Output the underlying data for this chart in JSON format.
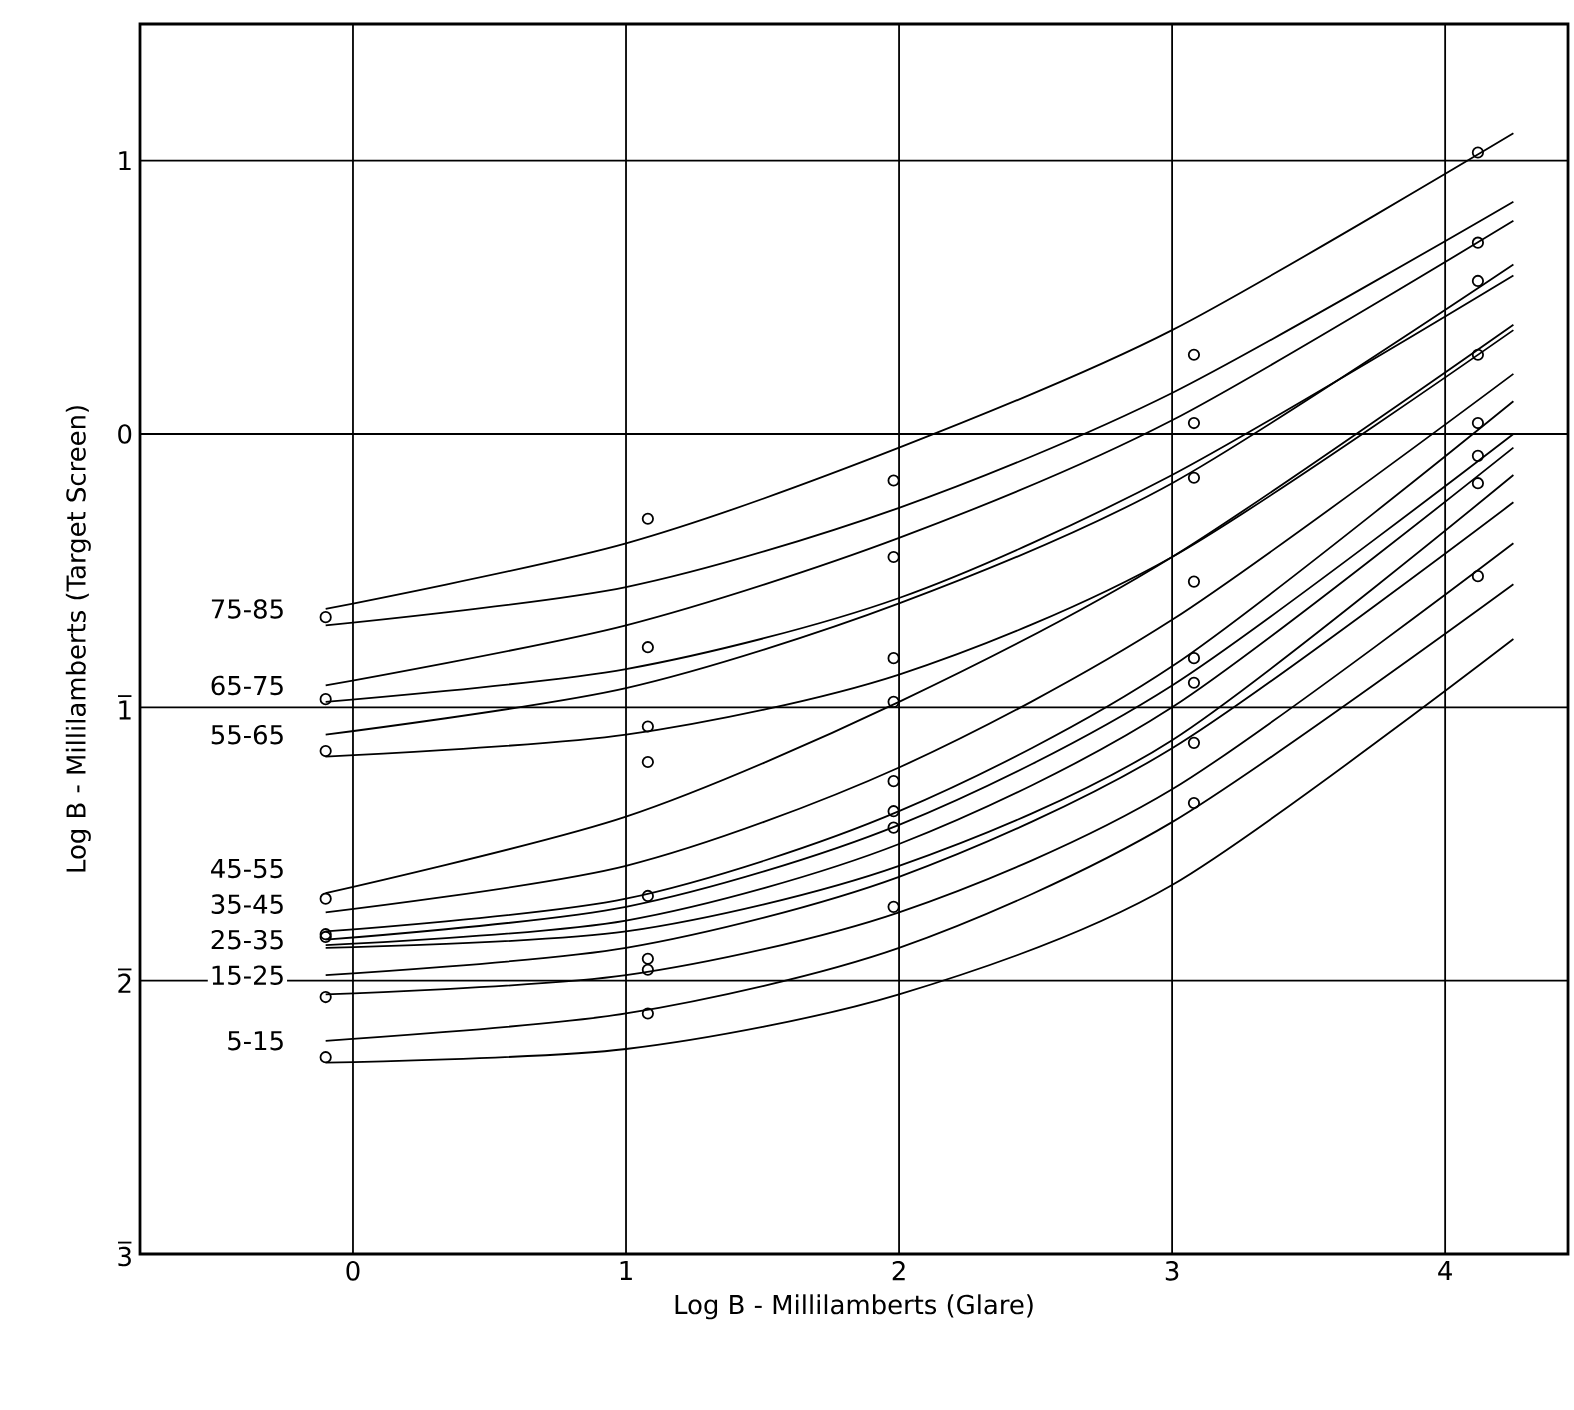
{
  "chart_data": {
    "type": "line",
    "xlabel": "Log B - Millilamberts (Glare)",
    "ylabel": "Log B - Millilamberts (Target Screen)",
    "xlim": [
      -0.78,
      4.45
    ],
    "ylim": [
      -3,
      1.5
    ],
    "xticks": [
      0,
      1,
      2,
      3,
      4
    ],
    "yticks": [
      {
        "value": -3,
        "label": "3̅"
      },
      {
        "value": -2,
        "label": "2̅"
      },
      {
        "value": -1,
        "label": "1̅"
      },
      0,
      1
    ],
    "grid": true,
    "series": [
      {
        "name": "75-85",
        "color": "#000000",
        "x": [
          -0.1,
          1,
          2,
          3,
          4.25
        ],
        "values": [
          -0.64,
          -0.4,
          -0.05,
          0.38,
          1.1
        ]
      },
      {
        "color": "#000000",
        "x": [
          -0.1,
          1,
          2,
          3,
          4.25
        ],
        "values": [
          -0.7,
          -0.56,
          -0.27,
          0.15,
          0.85
        ]
      },
      {
        "type": "scatter",
        "marker": "circle",
        "color": "#000000",
        "x": [
          -0.1,
          1.08,
          1.98,
          3.08,
          4.12
        ],
        "values": [
          -0.67,
          -0.31,
          -0.17,
          0.29,
          1.03
        ]
      },
      {
        "name": "65-75",
        "color": "#000000",
        "x": [
          -0.1,
          1,
          2,
          3,
          4.25
        ],
        "values": [
          -0.92,
          -0.7,
          -0.38,
          0.05,
          0.78
        ]
      },
      {
        "color": "#000000",
        "x": [
          -0.1,
          1,
          2,
          3,
          4.25
        ],
        "values": [
          -0.98,
          -0.86,
          -0.6,
          -0.15,
          0.58
        ]
      },
      {
        "type": "scatter",
        "marker": "circle",
        "color": "#000000",
        "x": [
          -0.1,
          1.08,
          1.98,
          3.08,
          4.12
        ],
        "values": [
          -0.97,
          -0.78,
          -0.45,
          0.04,
          0.7
        ]
      },
      {
        "name": "55-65",
        "color": "#000000",
        "x": [
          -0.1,
          1,
          2,
          3,
          4.25
        ],
        "values": [
          -1.1,
          -0.93,
          -0.62,
          -0.18,
          0.62
        ]
      },
      {
        "color": "#000000",
        "x": [
          -0.1,
          1,
          2,
          3,
          4.25
        ],
        "values": [
          -1.18,
          -1.1,
          -0.88,
          -0.45,
          0.38
        ]
      },
      {
        "type": "scatter",
        "marker": "circle",
        "color": "#000000",
        "x": [
          -0.1,
          1.08,
          1.98,
          3.08,
          4.12
        ],
        "values": [
          -1.16,
          -1.07,
          -0.82,
          -0.16,
          0.56
        ]
      },
      {
        "name": "45-55",
        "color": "#000000",
        "x": [
          -0.1,
          1,
          2,
          3,
          4.25
        ],
        "values": [
          -1.68,
          -1.4,
          -0.98,
          -0.45,
          0.4
        ]
      },
      {
        "color": "#000000",
        "x": [
          -0.1,
          1,
          2,
          3,
          4.25
        ],
        "values": [
          -1.75,
          -1.58,
          -1.22,
          -0.68,
          0.22
        ]
      },
      {
        "type": "scatter",
        "marker": "circle",
        "color": "#000000",
        "x": [
          -0.1,
          1.08,
          1.98,
          3.08,
          4.12
        ],
        "values": [
          -1.7,
          -1.2,
          -0.98,
          -0.54,
          0.29
        ]
      },
      {
        "name": "35-45",
        "color": "#000000",
        "x": [
          -0.1,
          1,
          2,
          3,
          4.25
        ],
        "values": [
          -1.82,
          -1.7,
          -1.38,
          -0.85,
          0.12
        ]
      },
      {
        "color": "#000000",
        "x": [
          -0.1,
          1,
          2,
          3,
          4.25
        ],
        "values": [
          -1.85,
          -1.73,
          -1.43,
          -0.92,
          0.0
        ]
      },
      {
        "type": "scatter",
        "marker": "circle",
        "color": "#000000",
        "x": [
          -0.1,
          1.08,
          1.98,
          3.08,
          4.12
        ],
        "values": [
          -1.84,
          -1.69,
          -1.27,
          -0.82,
          0.04
        ]
      },
      {
        "name": "25-35",
        "color": "#000000",
        "x": [
          -0.1,
          1,
          2,
          3,
          4.25
        ],
        "values": [
          -1.87,
          -1.78,
          -1.5,
          -1.0,
          -0.05
        ]
      },
      {
        "color": "#000000",
        "x": [
          -0.1,
          1,
          2,
          3,
          4.25
        ],
        "values": [
          -1.88,
          -1.82,
          -1.58,
          -1.12,
          -0.15
        ]
      },
      {
        "type": "scatter",
        "marker": "circle",
        "color": "#000000",
        "x": [
          -0.1,
          1.08,
          1.98,
          3.08,
          4.12
        ],
        "values": [
          -1.83,
          -1.92,
          -1.38,
          -0.91,
          -0.08
        ]
      },
      {
        "name": "15-25",
        "color": "#000000",
        "x": [
          -0.1,
          1,
          2,
          3,
          4.25
        ],
        "values": [
          -1.98,
          -1.88,
          -1.62,
          -1.15,
          -0.25
        ]
      },
      {
        "color": "#000000",
        "x": [
          -0.1,
          1,
          2,
          3,
          4.25
        ],
        "values": [
          -2.05,
          -1.98,
          -1.75,
          -1.3,
          -0.4
        ]
      },
      {
        "type": "scatter",
        "marker": "circle",
        "color": "#000000",
        "x": [
          -0.1,
          1.08,
          1.98,
          3.08,
          4.12
        ],
        "values": [
          -2.06,
          -1.96,
          -1.44,
          -1.13,
          -0.18
        ]
      },
      {
        "name": "5-15",
        "color": "#000000",
        "x": [
          -0.1,
          1,
          2,
          3,
          4.25
        ],
        "values": [
          -2.22,
          -2.12,
          -1.88,
          -1.42,
          -0.55
        ]
      },
      {
        "color": "#000000",
        "x": [
          -0.1,
          1,
          2,
          3,
          4.25
        ],
        "values": [
          -2.3,
          -2.25,
          -2.05,
          -1.65,
          -0.75
        ]
      },
      {
        "type": "scatter",
        "marker": "circle",
        "color": "#000000",
        "x": [
          -0.1,
          1.08,
          1.98,
          3.08,
          4.12
        ],
        "values": [
          -2.28,
          -2.12,
          -1.73,
          -1.35,
          -0.52
        ]
      }
    ]
  }
}
